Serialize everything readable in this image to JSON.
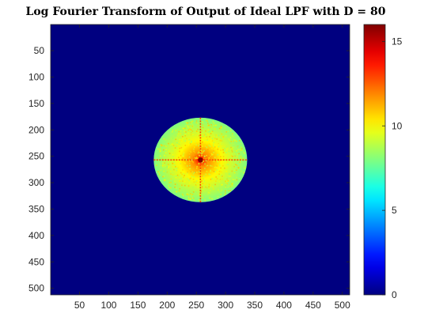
{
  "chart_data": {
    "type": "heatmap",
    "title": "Log Fourier Transform of Output of Ideal LPF with D = 80",
    "xlabel": "",
    "ylabel": "",
    "xlim": [
      0.5,
      512.5
    ],
    "ylim": [
      0.5,
      512.5
    ],
    "y_direction": "reverse",
    "x_ticks": [
      50,
      100,
      150,
      200,
      250,
      300,
      350,
      400,
      450,
      500
    ],
    "y_ticks": [
      50,
      100,
      150,
      200,
      250,
      300,
      350,
      400,
      450,
      500
    ],
    "colormap": "jet",
    "color_limits": [
      0,
      16
    ],
    "colorbar_ticks": [
      0,
      5,
      10,
      15
    ],
    "colorbar_position": "right",
    "background_value": 0,
    "filter": {
      "type": "ideal low-pass",
      "cutoff_D": 80,
      "center": [
        257,
        257
      ]
    },
    "values_inside_cutoff": {
      "typical_range": [
        8,
        11
      ],
      "peak_at_center": 16
    },
    "grid": false
  }
}
